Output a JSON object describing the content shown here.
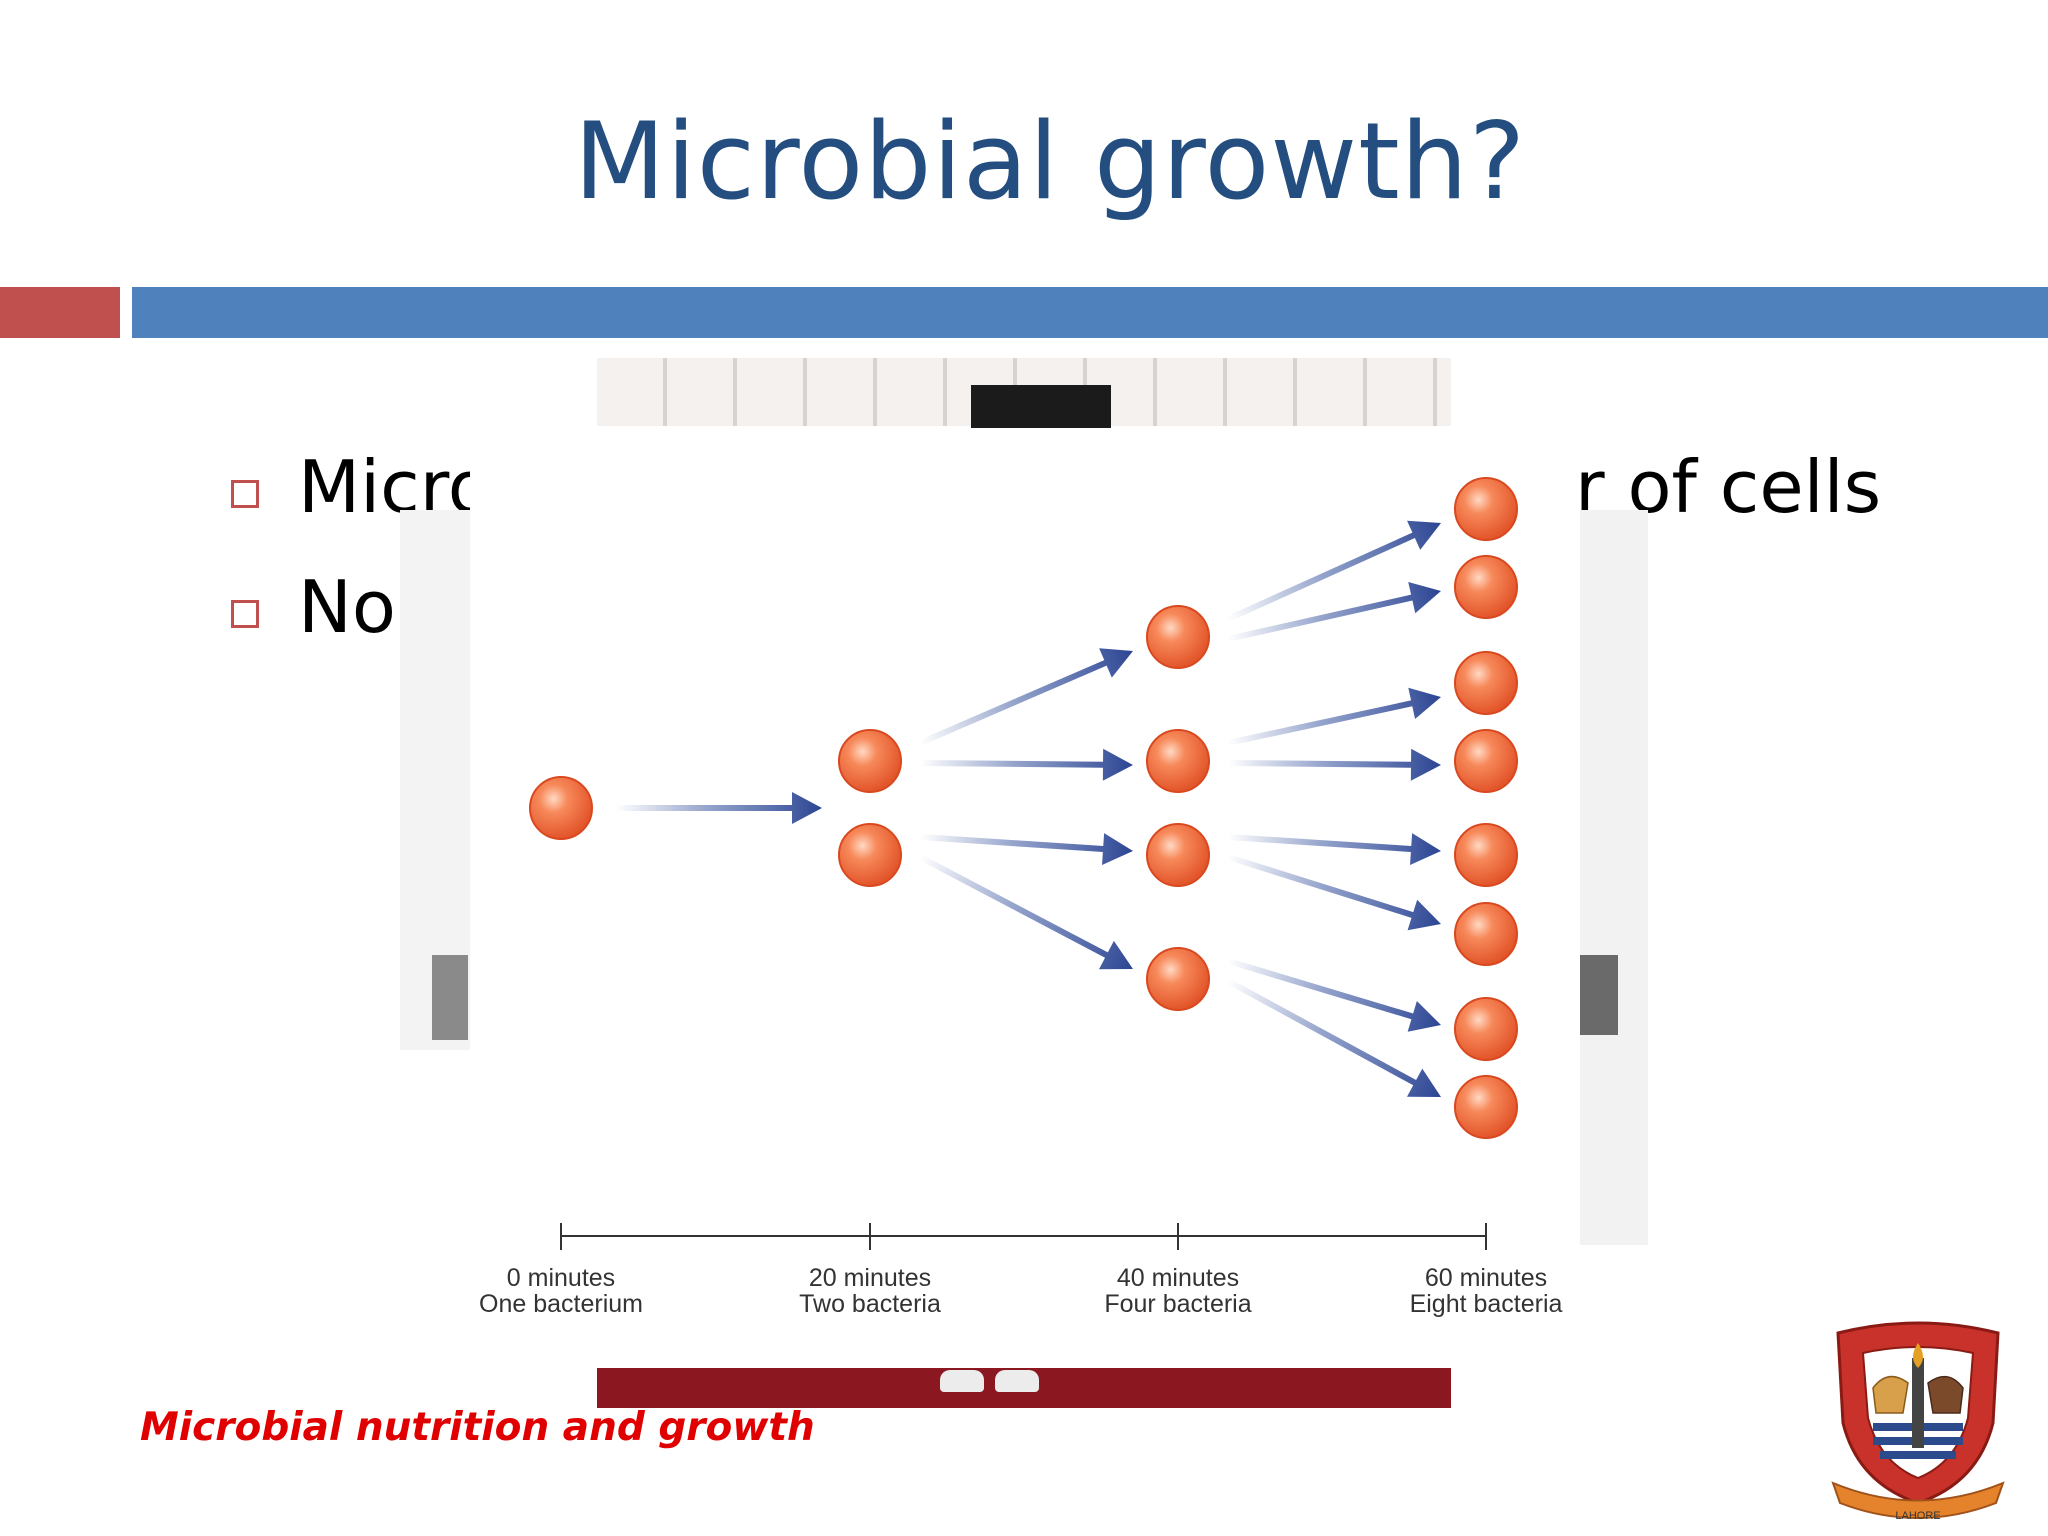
{
  "slide": {
    "title": "Microbial growth?",
    "bullets": [
      {
        "text_left": "Micro",
        "text_right": "r of cells"
      },
      {
        "text_left": "No",
        "text_right": ""
      }
    ],
    "footer": "Microbial nutrition and growth",
    "logo": {
      "caption": "LAHORE"
    }
  },
  "diagram": {
    "time_points": [
      {
        "time": "0 minutes",
        "caption": "One bacterium",
        "count": 1
      },
      {
        "time": "20 minutes",
        "caption": "Two bacteria",
        "count": 2
      },
      {
        "time": "40 minutes",
        "caption": "Four bacteria",
        "count": 4
      },
      {
        "time": "60 minutes",
        "caption": "Eight bacteria",
        "count": 8
      }
    ]
  },
  "colors": {
    "title": "#234e7f",
    "bar_red": "#c0504d",
    "bar_blue": "#4f81bd",
    "footer": "#e00000",
    "cell": "#ee6a3a",
    "arrow": "#3a56a0"
  }
}
